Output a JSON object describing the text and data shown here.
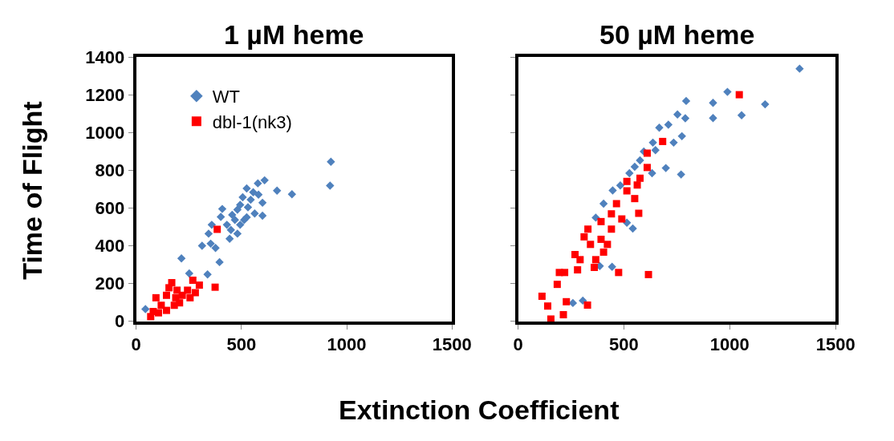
{
  "chart_data": [
    {
      "type": "scatter",
      "title": "1 µM heme",
      "xlabel": "Extinction Coefficient",
      "ylabel": "Time of Flight",
      "xlim": [
        0,
        1500
      ],
      "xticks": [
        0,
        500,
        1000,
        1500
      ],
      "ylim": [
        0,
        1400
      ],
      "yticks": [
        0,
        200,
        400,
        600,
        800,
        1000,
        1200,
        1400
      ],
      "legend": "top left",
      "series": [
        {
          "name": "WT",
          "color": "#4f81bd",
          "marker": "diamond",
          "x": [
            925,
            921,
            669,
            740,
            610,
            578,
            600,
            600,
            563,
            525,
            506,
            494,
            456,
            431,
            444,
            481,
            409,
            402,
            359,
            344,
            313,
            354,
            377,
            396,
            215,
            252,
            339,
            44,
            544,
            531,
            513,
            469,
            556,
            581,
            450,
            494,
            525,
            481
          ],
          "values": [
            845,
            719,
            692,
            673,
            747,
            731,
            628,
            559,
            571,
            704,
            657,
            617,
            564,
            511,
            437,
            464,
            595,
            553,
            511,
            464,
            400,
            411,
            388,
            313,
            333,
            253,
            248,
            64,
            644,
            604,
            537,
            537,
            684,
            671,
            484,
            511,
            551,
            591
          ]
        },
        {
          "name": "dbl-1(nk3)",
          "color": "#ff0000",
          "marker": "square",
          "x": [
            385,
            375,
            69,
            81,
            94,
            119,
            144,
            169,
            156,
            194,
            219,
            244,
            269,
            300,
            281,
            206,
            144,
            106,
            181,
            256,
            188
          ],
          "values": [
            487,
            180,
            24,
            51,
            124,
            84,
            137,
            204,
            177,
            164,
            137,
            164,
            217,
            191,
            151,
            97,
            57,
            44,
            84,
            124,
            124
          ]
        }
      ]
    },
    {
      "type": "scatter",
      "title": "50 µM heme",
      "xlim": [
        0,
        1500
      ],
      "xticks": [
        0,
        500,
        1000,
        1500
      ],
      "ylim": [
        0,
        1400
      ],
      "yticks": [
        0,
        200,
        400,
        600,
        800,
        1000,
        1200,
        1400
      ],
      "tick_labels": "x",
      "series": [
        {
          "color": "#4f81bd",
          "marker": "diamond",
          "x": [
            1330,
            989,
            1167,
            921,
            1056,
            921,
            794,
            790,
            774,
            753,
            710,
            667,
            735,
            698,
            770,
            637,
            649,
            594,
            576,
            551,
            526,
            633,
            447,
            483,
            404,
            367,
            514,
            542,
            444,
            386,
            259,
            306
          ],
          "values": [
            1339,
            1216,
            1150,
            1158,
            1092,
            1077,
            1168,
            1076,
            981,
            1096,
            1042,
            1026,
            947,
            812,
            778,
            947,
            907,
            900,
            853,
            819,
            785,
            785,
            693,
            720,
            623,
            549,
            522,
            491,
            288,
            292,
            96,
            109
          ]
        },
        {
          "color": "#ff0000",
          "marker": "square",
          "x": [
            1045,
            683,
            610,
            610,
            576,
            514,
            551,
            465,
            441,
            490,
            570,
            392,
            441,
            330,
            312,
            342,
            392,
            422,
            269,
            293,
            367,
            404,
            195,
            220,
            281,
            360,
            475,
            616,
            185,
            113,
            140,
            228,
            328,
            214,
            155,
            514,
            563
          ],
          "values": [
            1201,
            953,
            891,
            815,
            758,
            691,
            650,
            623,
            569,
            542,
            572,
            528,
            488,
            488,
            447,
            407,
            434,
            407,
            353,
            326,
            326,
            366,
            258,
            258,
            272,
            285,
            258,
            247,
            195,
            132,
            80,
            103,
            85,
            34,
            11,
            741,
            722
          ]
        }
      ]
    }
  ]
}
